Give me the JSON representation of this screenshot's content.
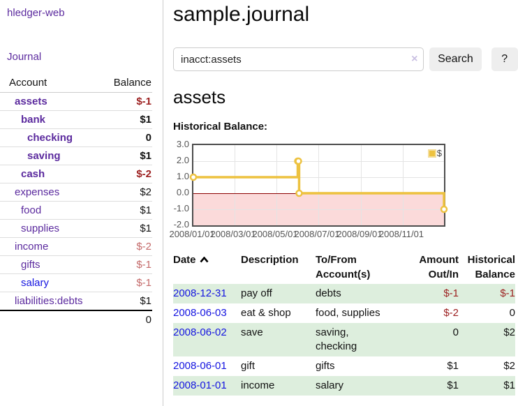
{
  "app": {
    "brand": "hledger-web",
    "nav_journal": "Journal"
  },
  "sidebar": {
    "header": {
      "account": "Account",
      "balance": "Balance"
    },
    "rows": [
      {
        "name": "assets",
        "balance": "$-1"
      },
      {
        "name": "bank",
        "balance": "$1"
      },
      {
        "name": "checking",
        "balance": "0"
      },
      {
        "name": "saving",
        "balance": "$1"
      },
      {
        "name": "cash",
        "balance": "$-2"
      },
      {
        "name": "expenses",
        "balance": "$2"
      },
      {
        "name": "food",
        "balance": "$1"
      },
      {
        "name": "supplies",
        "balance": "$1"
      },
      {
        "name": "income",
        "balance": "$-2"
      },
      {
        "name": "gifts",
        "balance": "$-1"
      },
      {
        "name": "salary",
        "balance": "$-1"
      },
      {
        "name": "liabilities:debts",
        "balance": "$1"
      }
    ],
    "total": "0"
  },
  "main": {
    "title": "sample.journal",
    "search": {
      "query": "inacct:assets",
      "clear_icon": "×",
      "search_label": "Search",
      "help_label": "?"
    },
    "account_heading": "assets",
    "chart_label": "Historical Balance:"
  },
  "chart_data": {
    "type": "line",
    "step": true,
    "title": "Historical Balance:",
    "series": [
      {
        "name": "$",
        "color": "#edc240",
        "points": [
          [
            "2008-01-01",
            1
          ],
          [
            "2008-06-01",
            2
          ],
          [
            "2008-06-02",
            2
          ],
          [
            "2008-06-03",
            0
          ],
          [
            "2008-12-31",
            -1
          ]
        ]
      }
    ],
    "xrange": [
      "2008-01-01",
      "2008-12-31"
    ],
    "ylim": [
      -2,
      3
    ],
    "yticks": [
      "3.0",
      "2.0",
      "1.0",
      "0.0",
      "-1.0",
      "-2.0"
    ],
    "xticks": [
      "2008/01/01",
      "2008/03/01",
      "2008/05/01",
      "2008/07/01",
      "2008/09/01",
      "2008/11/01"
    ],
    "legend_position": "top-right",
    "grid": true,
    "negative_region_color": "#fbdada",
    "zero_line_color": "#8b0000"
  },
  "register": {
    "headers": {
      "date": "Date",
      "description": "Description",
      "accounts": "To/From\nAccount(s)",
      "amount": "Amount\nOut/In",
      "balance": "Historical\nBalance"
    },
    "rows": [
      {
        "date": "2008-12-31",
        "description": "pay off",
        "accounts": "debts",
        "amount": "$-1",
        "balance": "$-1"
      },
      {
        "date": "2008-06-03",
        "description": "eat & shop",
        "accounts": "food, supplies",
        "amount": "$-2",
        "balance": "0"
      },
      {
        "date": "2008-06-02",
        "description": "save",
        "accounts": "saving,\nchecking",
        "amount": "0",
        "balance": "$2"
      },
      {
        "date": "2008-06-01",
        "description": "gift",
        "accounts": "gifts",
        "amount": "$1",
        "balance": "$2"
      },
      {
        "date": "2008-01-01",
        "description": "income",
        "accounts": "salary",
        "amount": "$1",
        "balance": "$1"
      }
    ]
  }
}
